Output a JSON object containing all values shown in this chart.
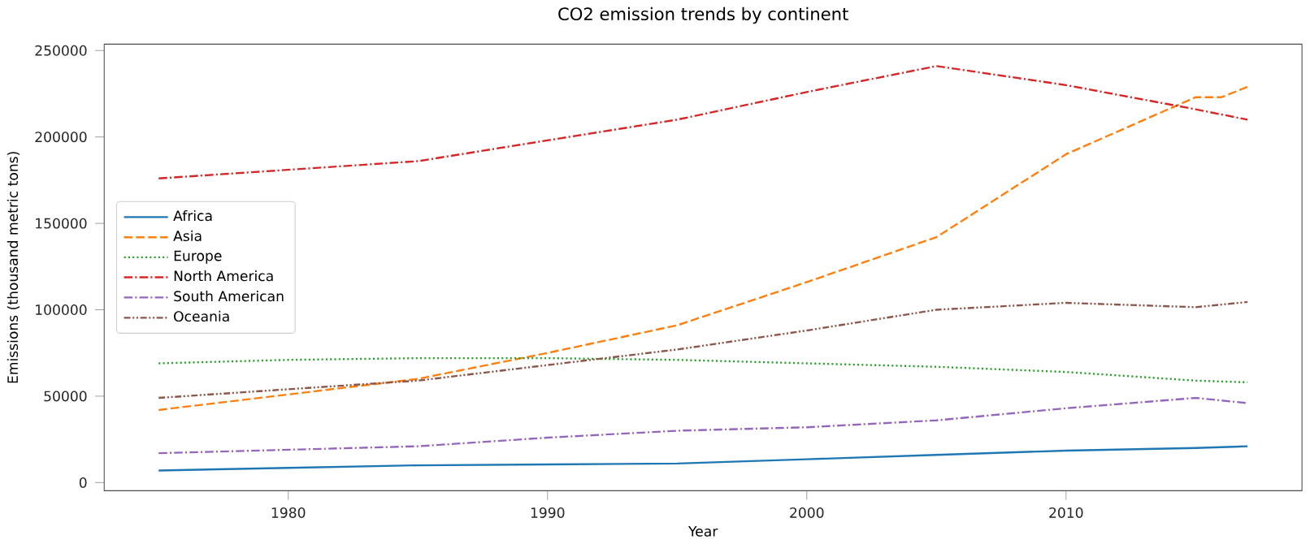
{
  "chart_data": {
    "type": "line",
    "title": "CO2 emission trends by continent",
    "xlabel": "Year",
    "ylabel": "Emissions (thousand metric tons)",
    "x": [
      1975,
      1980,
      1985,
      1990,
      1995,
      2000,
      2005,
      2010,
      2015,
      2016,
      2017
    ],
    "series": [
      {
        "name": "Africa",
        "color": "#1f77b4",
        "line_style": "solid",
        "values": [
          7000,
          8500,
          10000,
          10500,
          11000,
          13500,
          16000,
          18500,
          20000,
          20500,
          21000
        ]
      },
      {
        "name": "Asia",
        "color": "#ff7f0e",
        "line_style": "dashed",
        "values": [
          42000,
          51000,
          60000,
          75000,
          91000,
          116000,
          142000,
          190000,
          223000,
          223000,
          229000
        ]
      },
      {
        "name": "Europe",
        "color": "#2ca02c",
        "line_style": "dotted",
        "values": [
          69000,
          71000,
          72000,
          72000,
          71000,
          69000,
          67000,
          64000,
          59000,
          58500,
          58000
        ]
      },
      {
        "name": "North America",
        "color": "#d62728",
        "line_style": "dashdot",
        "values": [
          176000,
          181000,
          186000,
          198000,
          210000,
          226000,
          241000,
          230000,
          216000,
          213000,
          210000
        ]
      },
      {
        "name": "South American",
        "color": "#9467bd",
        "line_style": "dashdot",
        "values": [
          17000,
          19000,
          21000,
          26000,
          30000,
          32000,
          36000,
          43000,
          49000,
          47500,
          46000
        ]
      },
      {
        "name": "Oceania",
        "color": "#8c564b",
        "line_style": "dashdotdot",
        "values": [
          49000,
          54000,
          59000,
          68000,
          77000,
          88000,
          100000,
          104000,
          101500,
          103000,
          104500
        ]
      }
    ],
    "xlim": [
      1972.9,
      2019.1
    ],
    "ylim": [
      -4700,
      253700
    ],
    "xticks": [
      1980,
      1990,
      2000,
      2010
    ],
    "yticks": [
      0,
      50000,
      100000,
      150000,
      200000,
      250000
    ],
    "grid": false,
    "legend": "left",
    "marker": "none"
  }
}
